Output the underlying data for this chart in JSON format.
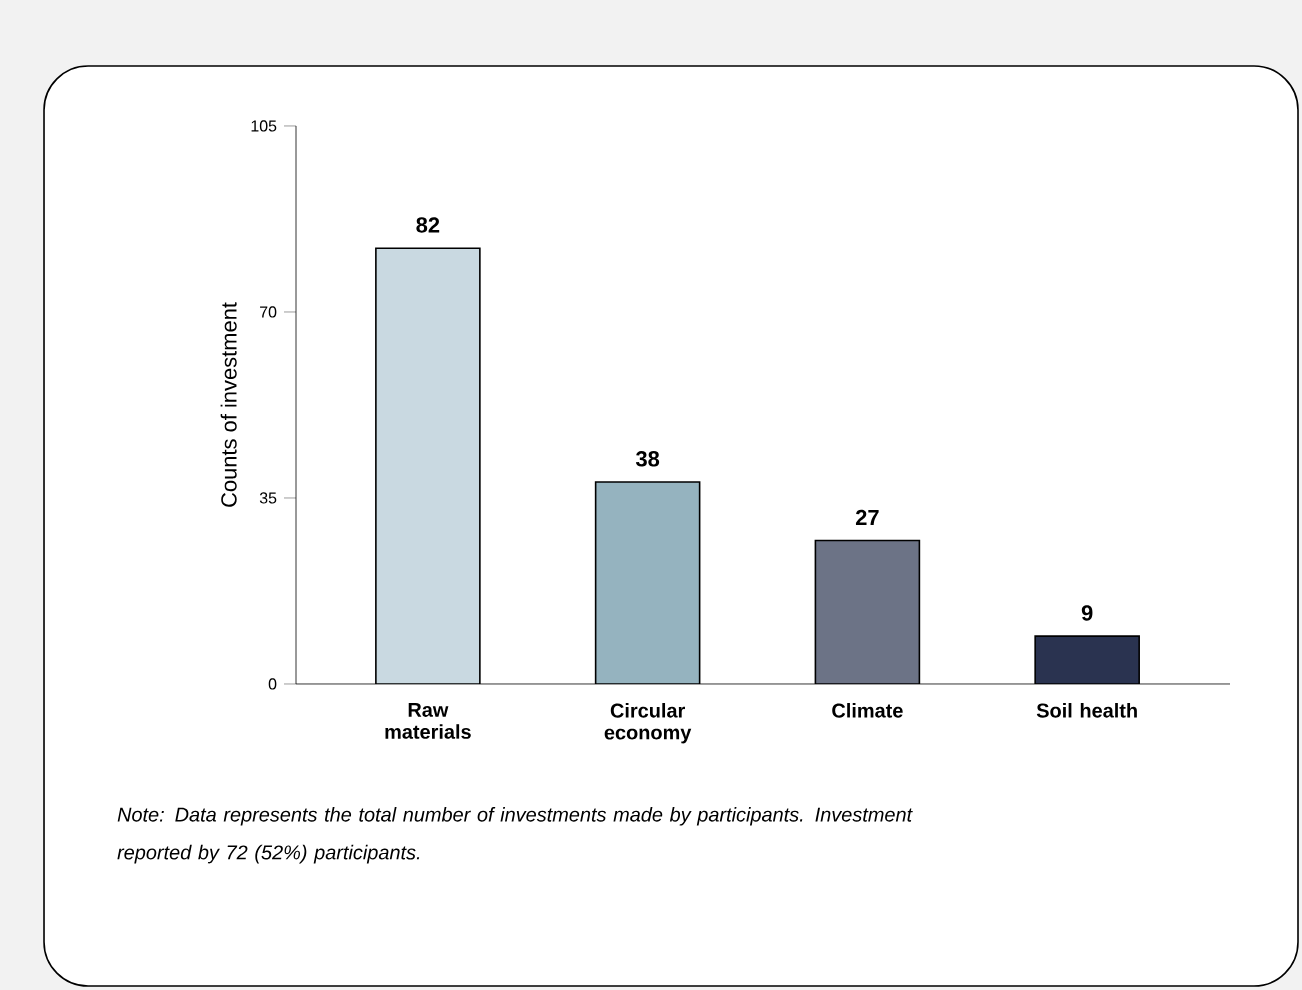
{
  "chart_data": {
    "type": "bar",
    "ylabel": "Counts of investment",
    "categories": [
      "Raw materials",
      "Circular economy",
      "Climate",
      "Soil health"
    ],
    "values": [
      82,
      38,
      27,
      9
    ],
    "colors": [
      "#c9d9e1",
      "#95b3bf",
      "#6c7386",
      "#2a3350"
    ],
    "ylim": [
      0,
      105
    ],
    "yticks": [
      0,
      35,
      70,
      105
    ],
    "data_labels": true,
    "grid": false,
    "annotations": [
      "Note: Data represents the total number of investments made by participants. Investment reported by 72 (52%) participants."
    ]
  }
}
